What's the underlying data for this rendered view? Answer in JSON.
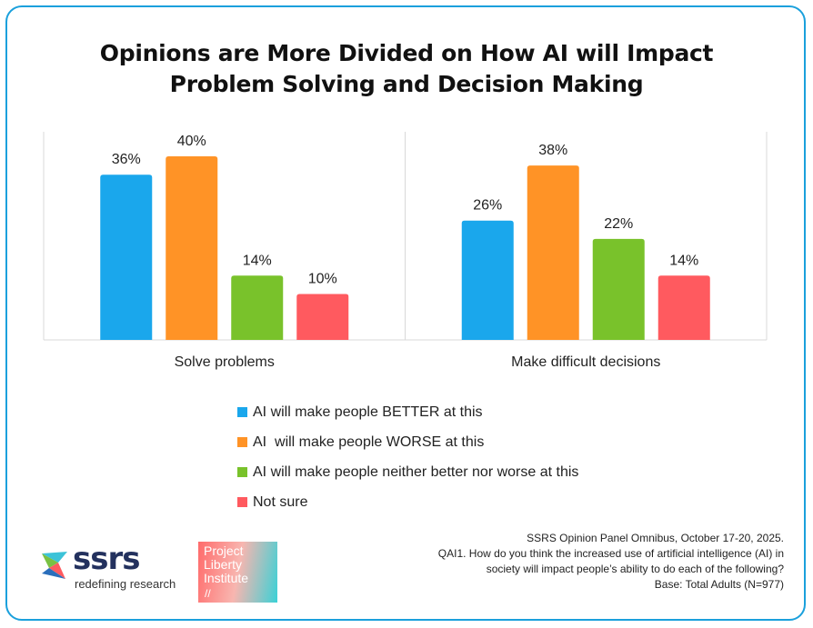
{
  "chart_data": {
    "type": "bar",
    "title_lines": [
      "Opinions are More Divided on How AI will Impact",
      "Problem Solving and Decision Making"
    ],
    "categories": [
      "Solve problems",
      "Make difficult decisions"
    ],
    "series": [
      {
        "name": "AI will make people BETTER at this",
        "values": [
          36,
          26
        ],
        "color": "#1aa7ec"
      },
      {
        "name": "AI  will make people WORSE at this",
        "values": [
          40,
          38
        ],
        "color": "#ff9326"
      },
      {
        "name": "AI will make people neither better nor worse at this",
        "values": [
          14,
          22
        ],
        "color": "#79c22b"
      },
      {
        "name": "Not sure",
        "values": [
          10,
          14
        ],
        "color": "#ff5a5f"
      }
    ],
    "value_suffix": "%",
    "ylim": [
      0,
      40
    ],
    "grid": false,
    "legend_position": "bottom"
  },
  "source": {
    "lines": [
      "SSRS Opinion Panel Omnibus, October 17-20, 2025.",
      "QAI1. How do you think the increased use of artificial intelligence (AI) in",
      "society will impact people’s ability to do each of the following?",
      "Base: Total Adults (N=977)"
    ]
  },
  "logos": {
    "ssrs": {
      "word": "ssrs",
      "tagline": "redefining research"
    },
    "project_liberty": {
      "lines": [
        "Project",
        "Liberty",
        "Institute"
      ],
      "mark": "//"
    }
  },
  "colors": {
    "border": "#1aa0dc",
    "axis": "#d9d9d9"
  }
}
